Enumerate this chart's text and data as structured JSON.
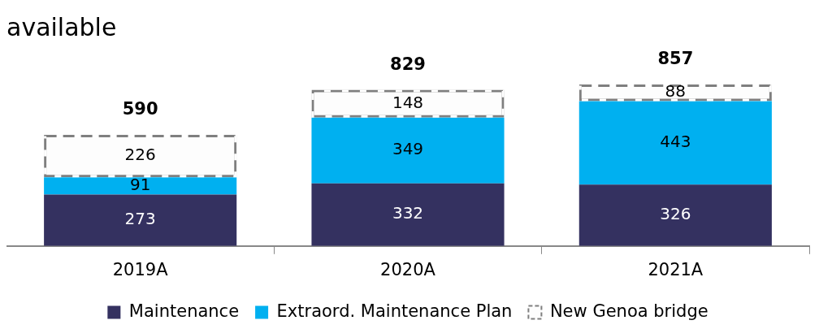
{
  "chart_data": {
    "type": "bar",
    "title": "available",
    "categories": [
      "2019A",
      "2020A",
      "2021A"
    ],
    "stacked": true,
    "data_labels": true,
    "legend": "bottom",
    "grid": false,
    "series": [
      {
        "name": "Maintenance",
        "color": "#343160",
        "values": [
          273,
          332,
          326
        ]
      },
      {
        "name": "Extraord. Maintenance Plan",
        "color": "#00b0f0",
        "values": [
          91,
          349,
          443
        ]
      },
      {
        "name": "New Genoa bridge",
        "color": "#7f7f7f",
        "line_style": "dashed",
        "values": [
          226,
          148,
          88
        ]
      }
    ],
    "totals": [
      "590",
      "829",
      "857"
    ]
  }
}
